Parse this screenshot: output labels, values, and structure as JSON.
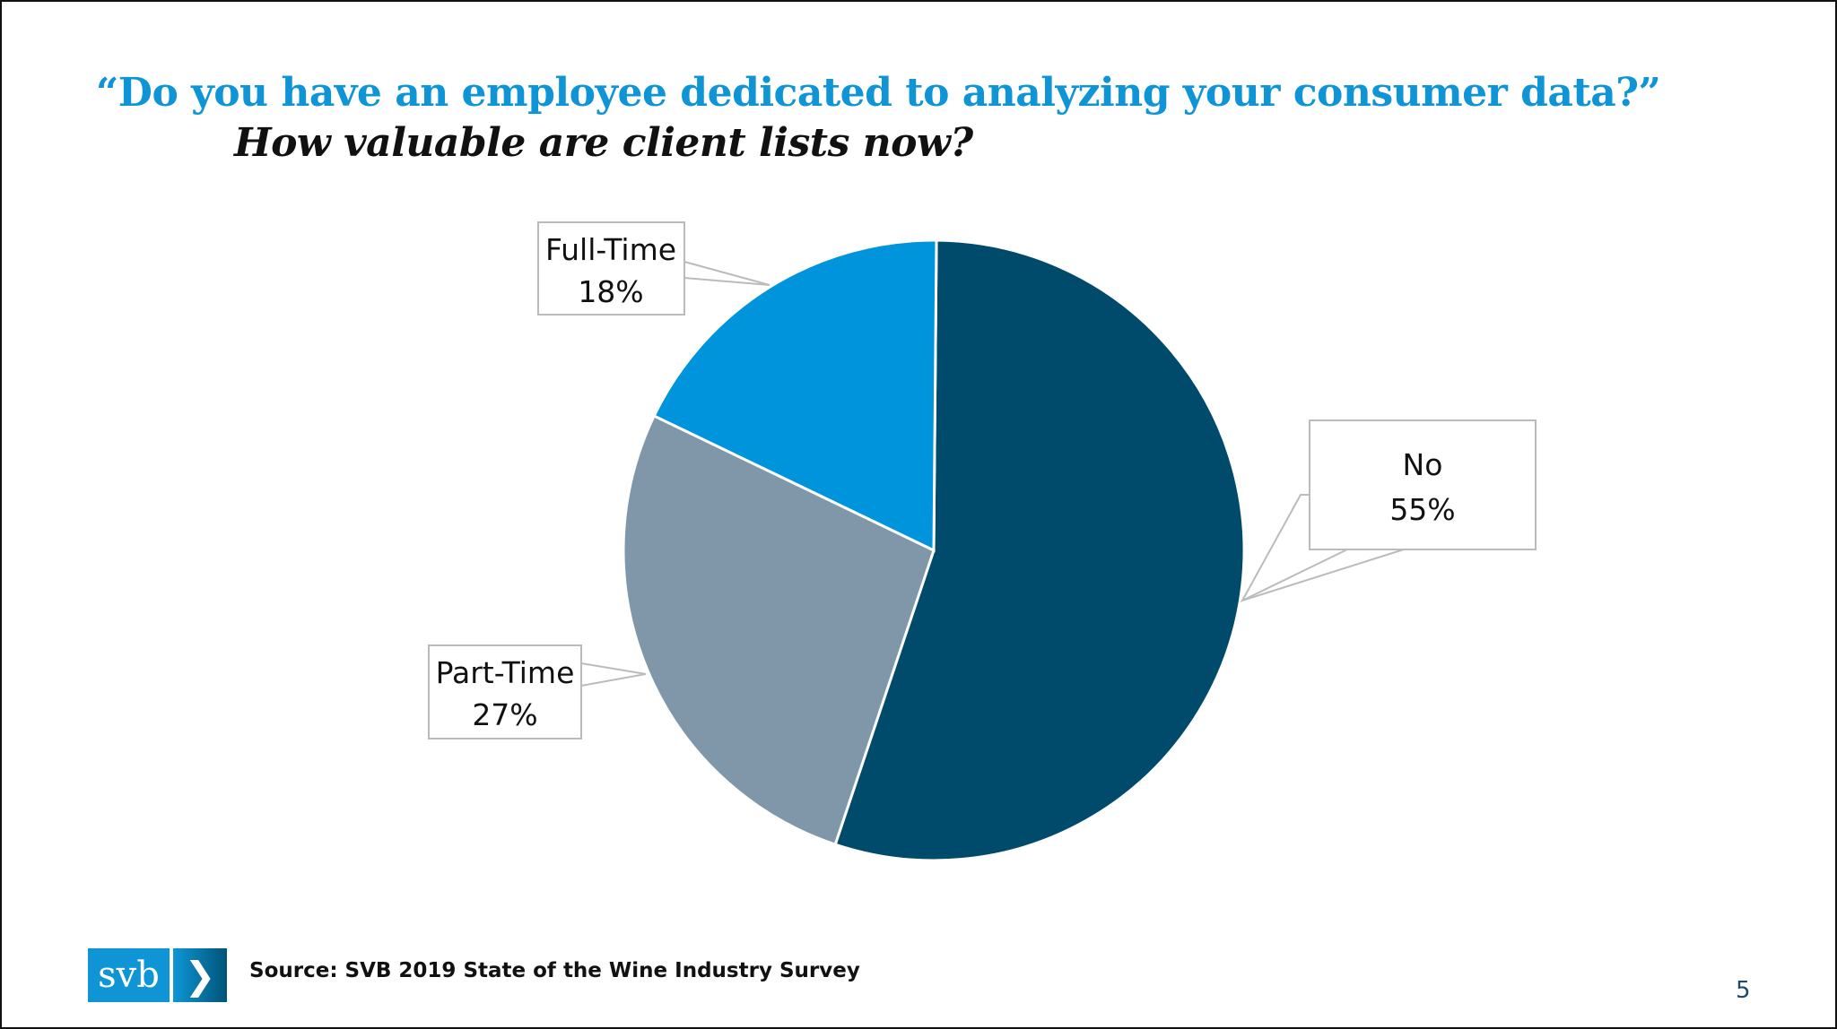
{
  "title": "“Do you have an employee dedicated to analyzing your consumer data?”",
  "subtitle": "How valuable are client lists now?",
  "chart_data": {
    "type": "pie",
    "title": "“Do you have an employee dedicated to analyzing your consumer data?”",
    "subtitle": "How valuable are client lists now?",
    "categories": [
      "No",
      "Part-Time",
      "Full-Time"
    ],
    "values": [
      55,
      27,
      18
    ],
    "labels": [
      "55%",
      "27%",
      "18%"
    ],
    "colors": [
      "#004b6b",
      "#7f97a9",
      "#0094dc"
    ],
    "start": "top, clockwise"
  },
  "footer": {
    "logo_text": "svb",
    "logo_arrow": "❯",
    "source": "Source: SVB 2019 State of the Wine Industry Survey",
    "page_number": "5"
  }
}
